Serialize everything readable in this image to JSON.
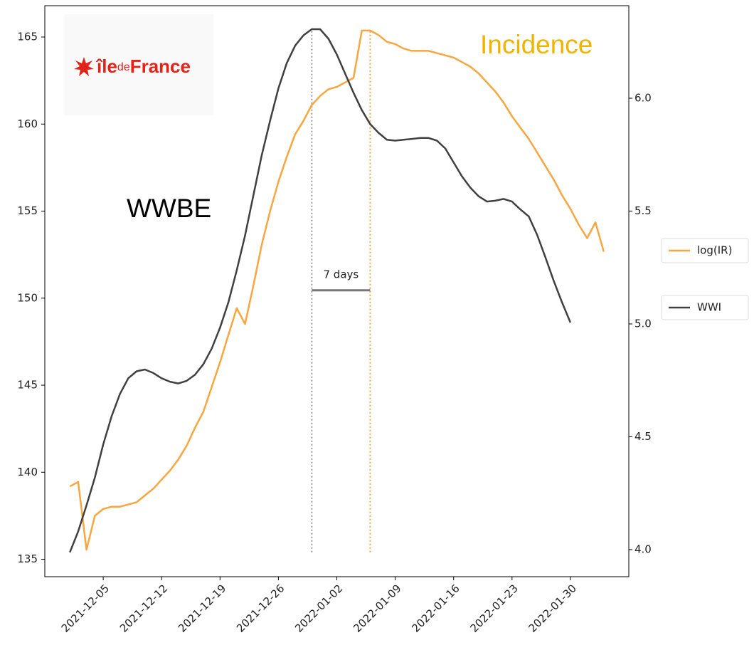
{
  "chart_data": {
    "type": "line",
    "x": [
      "2021-12-01",
      "2021-12-02",
      "2021-12-03",
      "2021-12-04",
      "2021-12-05",
      "2021-12-06",
      "2021-12-07",
      "2021-12-08",
      "2021-12-09",
      "2021-12-10",
      "2021-12-11",
      "2021-12-12",
      "2021-12-13",
      "2021-12-14",
      "2021-12-15",
      "2021-12-16",
      "2021-12-17",
      "2021-12-18",
      "2021-12-19",
      "2021-12-20",
      "2021-12-21",
      "2021-12-22",
      "2021-12-23",
      "2021-12-24",
      "2021-12-25",
      "2021-12-26",
      "2021-12-27",
      "2021-12-28",
      "2021-12-29",
      "2021-12-30",
      "2021-12-31",
      "2022-01-01",
      "2022-01-02",
      "2022-01-03",
      "2022-01-04",
      "2022-01-05",
      "2022-01-06",
      "2022-01-07",
      "2022-01-08",
      "2022-01-09",
      "2022-01-10",
      "2022-01-11",
      "2022-01-12",
      "2022-01-13",
      "2022-01-14",
      "2022-01-15",
      "2022-01-16",
      "2022-01-17",
      "2022-01-18",
      "2022-01-19",
      "2022-01-20",
      "2022-01-21",
      "2022-01-22",
      "2022-01-23",
      "2022-01-24",
      "2022-01-25",
      "2022-01-26",
      "2022-01-27",
      "2022-01-28",
      "2022-01-29",
      "2022-01-30",
      "2022-01-31",
      "2022-02-01",
      "2022-02-02",
      "2022-02-03"
    ],
    "series": [
      {
        "name": "log(IR)",
        "color": "#f7a640",
        "axis": "y2",
        "values": [
          4.28,
          4.3,
          4.0,
          4.15,
          4.18,
          4.19,
          4.19,
          4.2,
          4.21,
          4.24,
          4.27,
          4.31,
          4.35,
          4.4,
          4.46,
          4.54,
          4.61,
          4.72,
          4.83,
          4.95,
          5.07,
          5.0,
          5.17,
          5.35,
          5.5,
          5.63,
          5.74,
          5.84,
          5.9,
          5.97,
          6.01,
          6.04,
          6.05,
          6.07,
          6.09,
          6.3,
          6.3,
          6.28,
          6.25,
          6.24,
          6.22,
          6.21,
          6.21,
          6.21,
          6.2,
          6.19,
          6.18,
          6.16,
          6.14,
          6.11,
          6.07,
          6.03,
          5.98,
          5.92,
          5.87,
          5.82,
          5.76,
          5.7,
          5.64,
          5.57,
          5.51,
          5.44,
          5.38,
          5.45,
          5.32
        ]
      },
      {
        "name": "WWI",
        "color": "#404040",
        "values": [
          135.4,
          136.6,
          138.1,
          139.7,
          141.6,
          143.2,
          144.5,
          145.4,
          145.8,
          145.9,
          145.7,
          145.4,
          145.2,
          145.1,
          145.25,
          145.6,
          146.2,
          147.1,
          148.3,
          149.75,
          151.6,
          153.6,
          155.9,
          158.2,
          160.2,
          162.05,
          163.5,
          164.5,
          165.1,
          165.45,
          165.45,
          164.9,
          164.0,
          162.9,
          161.8,
          160.8,
          160.0,
          159.5,
          159.1,
          159.05,
          159.1,
          159.15,
          159.2,
          159.2,
          159.05,
          158.6,
          157.8,
          157.0,
          156.35,
          155.85,
          155.55,
          155.6,
          155.7,
          155.55,
          155.1,
          154.7,
          153.65,
          152.35,
          151.0,
          149.75,
          148.6,
          null,
          null,
          null,
          null
        ]
      }
    ],
    "xlim": [
      "2021-11-28",
      "2022-02-06"
    ],
    "xticks": [
      "2021-12-05",
      "2021-12-12",
      "2021-12-19",
      "2021-12-26",
      "2022-01-02",
      "2022-01-09",
      "2022-01-16",
      "2022-01-23",
      "2022-01-30"
    ],
    "ylim": [
      134,
      166.8
    ],
    "yticks": [
      135,
      140,
      145,
      150,
      155,
      160,
      165
    ],
    "y2lim": [
      3.88,
      6.41
    ],
    "y2ticks": [
      {
        "value": 4,
        "label": "4.0"
      },
      {
        "value": 4.5,
        "label": "4.5"
      },
      {
        "value": 5,
        "label": "5.0"
      },
      {
        "value": 5.5,
        "label": "5.5"
      },
      {
        "value": 6,
        "label": "6.0"
      }
    ],
    "vlines": [
      {
        "x": "2021-12-30",
        "ymin": 135.4,
        "ymax": 165.45,
        "color": "#999999"
      },
      {
        "x": "2022-01-06",
        "ymin": 135.4,
        "ymax": 165.45,
        "color": "#f7a640"
      }
    ],
    "span_annotation": {
      "text": "7 days",
      "x_start": "2021-12-30",
      "x_end": "2022-01-06",
      "y": 150.45
    },
    "labels": [
      {
        "text": "WWBE",
        "color": "#000000"
      },
      {
        "text": "Incidence",
        "color": "#f0b400"
      }
    ],
    "logo": [
      "île",
      "de",
      "France"
    ],
    "legend": "outside right"
  }
}
